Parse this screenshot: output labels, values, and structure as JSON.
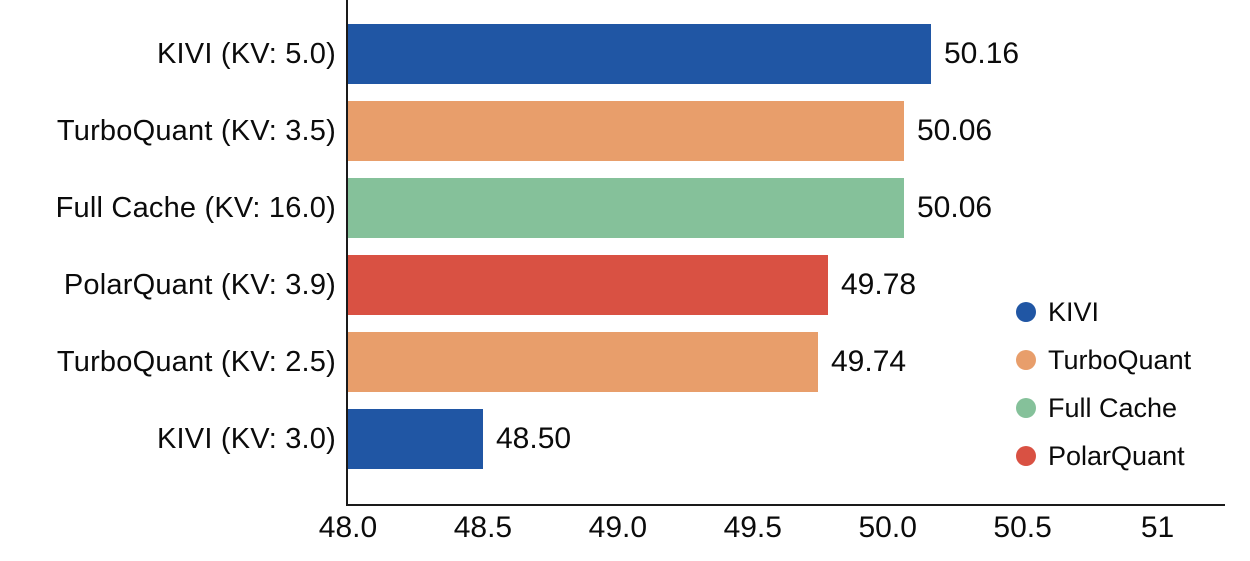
{
  "chart_data": {
    "type": "bar",
    "orientation": "horizontal",
    "title": "",
    "xlabel": "",
    "ylabel": "",
    "categories": [
      "KIVI (KV: 5.0)",
      "TurboQuant (KV: 3.5)",
      "Full Cache (KV: 16.0)",
      "PolarQuant (KV: 3.9)",
      "TurboQuant (KV: 2.5)",
      "KIVI (KV: 3.0)"
    ],
    "values": [
      50.16,
      50.06,
      50.06,
      49.78,
      49.74,
      48.5
    ],
    "value_labels": [
      "50.16",
      "50.06",
      "50.06",
      "49.78",
      "49.74",
      "48.50"
    ],
    "bar_series": [
      "KIVI",
      "TurboQuant",
      "Full Cache",
      "PolarQuant",
      "TurboQuant",
      "KIVI"
    ],
    "xlim": [
      48.0,
      51.25
    ],
    "x_ticks": [
      {
        "value": 48.0,
        "label": "48.0"
      },
      {
        "value": 48.5,
        "label": "48.5"
      },
      {
        "value": 49.0,
        "label": "49.0"
      },
      {
        "value": 49.5,
        "label": "49.5"
      },
      {
        "value": 50.0,
        "label": "50.0"
      },
      {
        "value": 50.5,
        "label": "50.5"
      },
      {
        "value": 51.0,
        "label": "51"
      }
    ],
    "grid": false,
    "legend_position": "right",
    "legend": [
      {
        "label": "KIVI",
        "color": "#2056A4"
      },
      {
        "label": "TurboQuant",
        "color": "#E89E6B"
      },
      {
        "label": "Full Cache",
        "color": "#85C19A"
      },
      {
        "label": "PolarQuant",
        "color": "#D95143"
      }
    ],
    "colors": {
      "KIVI": "#2056A4",
      "TurboQuant": "#E89E6B",
      "Full Cache": "#85C19A",
      "PolarQuant": "#D95143"
    },
    "axis_color": "#1a1a1a"
  }
}
